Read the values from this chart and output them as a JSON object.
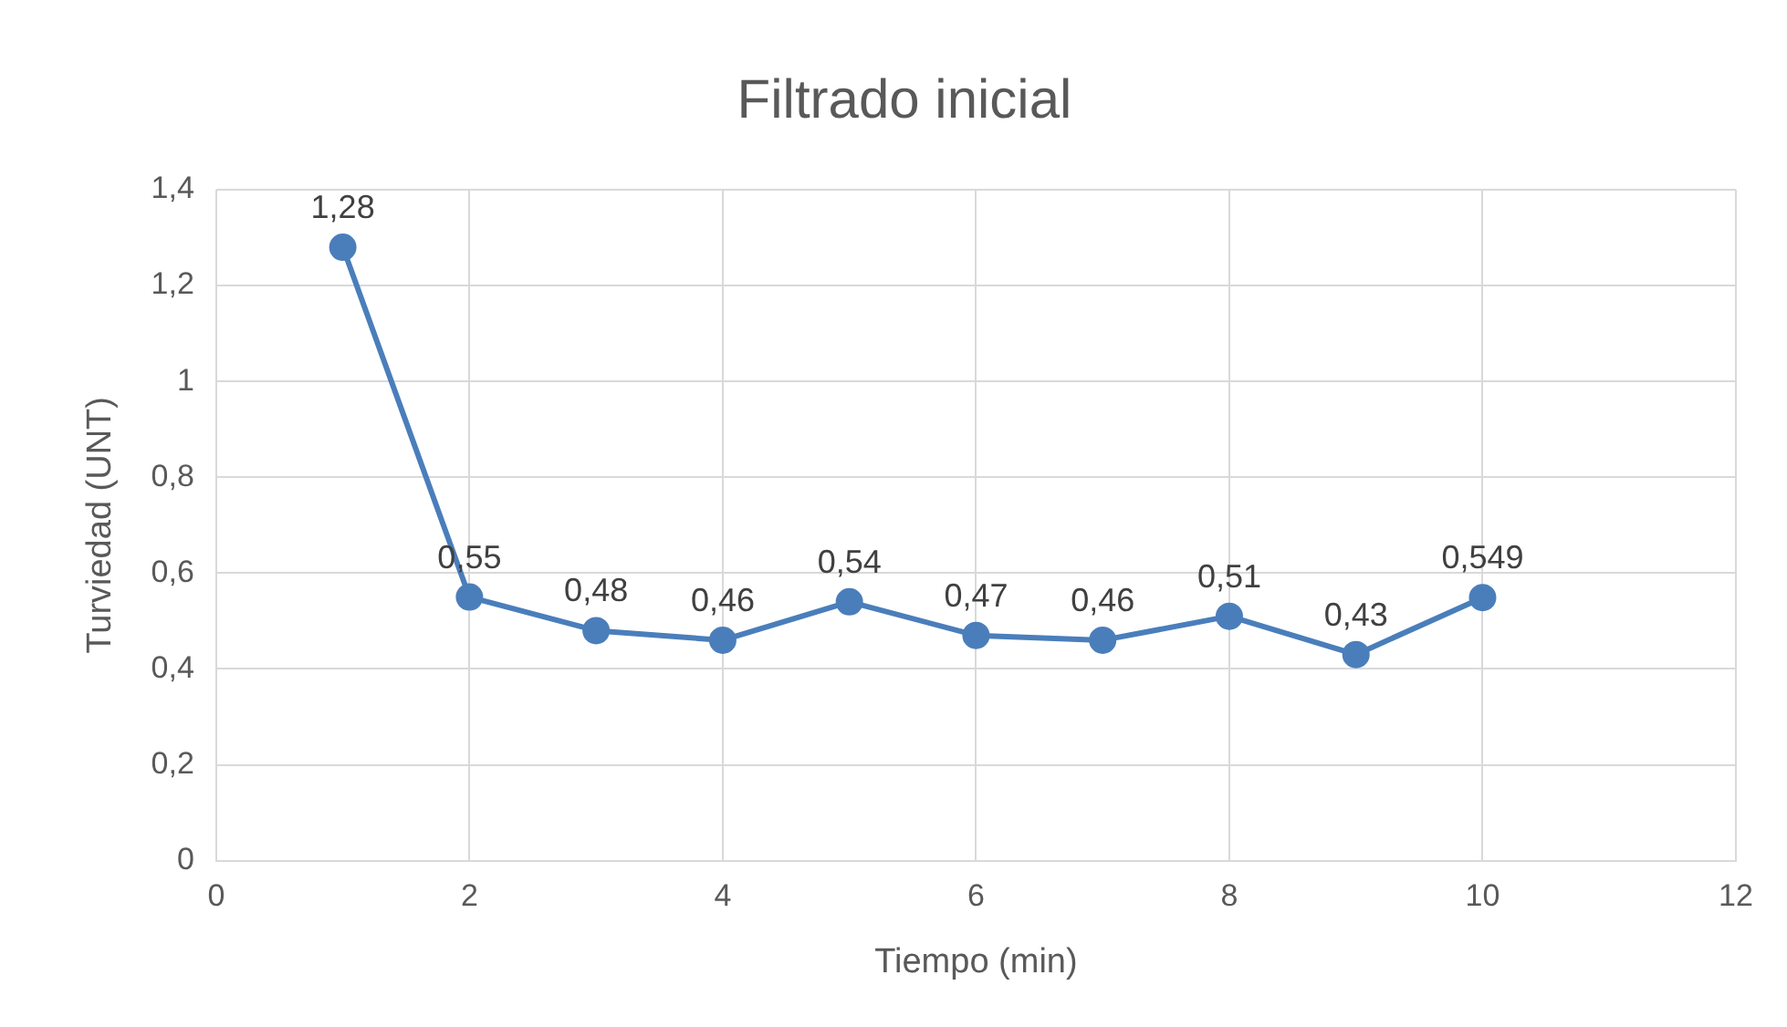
{
  "chart_data": {
    "type": "line",
    "title": "Filtrado inicial",
    "xlabel": "Tiempo (min)",
    "ylabel": "Turviedad (UNT)",
    "x": [
      1,
      2,
      3,
      4,
      5,
      6,
      7,
      8,
      9,
      10
    ],
    "series": [
      {
        "color": "#4a7ebb",
        "values": [
          1.28,
          0.55,
          0.48,
          0.46,
          0.54,
          0.47,
          0.46,
          0.51,
          0.43,
          0.549
        ],
        "value_labels": [
          "1,28",
          "0,55",
          "0,48",
          "0,46",
          "0,54",
          "0,47",
          "0,46",
          "0,51",
          "0,43",
          "0,549"
        ]
      }
    ],
    "xlim": [
      0,
      12
    ],
    "xticks": [
      0,
      2,
      4,
      6,
      8,
      10,
      12
    ],
    "ylim": [
      0,
      1.4
    ],
    "yticks": [
      0,
      {
        "value": 0.2,
        "label": "0,2"
      },
      {
        "value": 0.4,
        "label": "0,4"
      },
      {
        "value": 0.6,
        "label": "0,6"
      },
      {
        "value": 0.8,
        "label": "0,8"
      },
      1,
      {
        "value": 1.2,
        "label": "1,2"
      },
      {
        "value": 1.4,
        "label": "1,4"
      }
    ],
    "grid": true,
    "legend": false,
    "marker": "circle",
    "line_style": "solid"
  }
}
